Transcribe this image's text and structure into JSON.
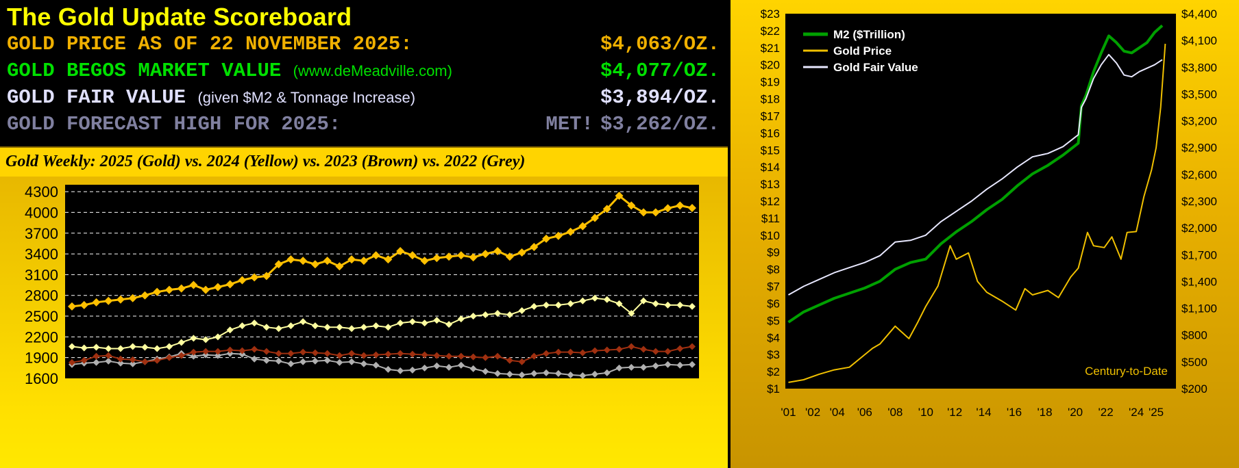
{
  "scoreboard": {
    "title": "The Gold Update Scoreboard",
    "rows": [
      {
        "label": "GOLD PRICE AS OF 22 NOVEMBER 2025:",
        "sublabel": "",
        "value": "$4,063/OZ.",
        "prefix": "",
        "color": "#F0B000"
      },
      {
        "label": "GOLD BEGOS MARKET VALUE",
        "sublabel": "(www.deMeadville.com)",
        "value": "$4,077/OZ.",
        "prefix": "",
        "color": "#00E000"
      },
      {
        "label": "GOLD FAIR VALUE",
        "sublabel": "(given $M2 & Tonnage Increase)",
        "value": "$3,894/OZ.",
        "prefix": "",
        "color": "#E0E0FF"
      },
      {
        "label": "GOLD FORECAST HIGH FOR 2025:",
        "sublabel": "",
        "value": "$3,262/OZ.",
        "prefix": "MET!",
        "color": "#8080A0"
      }
    ],
    "weekly_title": "Gold Weekly:  2025 (Gold) vs. 2024 (Yellow) vs. 2023 (Brown) vs. 2022 (Grey)"
  },
  "chart_data": [
    {
      "type": "line",
      "title": "",
      "xlabel": "",
      "ylabel": "",
      "y_ticks": [
        1600,
        1900,
        2200,
        2500,
        2800,
        3100,
        3400,
        3700,
        4000,
        4300
      ],
      "ylim": [
        1600,
        4400
      ],
      "grid": true,
      "x": "week of year (1-52)",
      "series": [
        {
          "key": "g2025",
          "color": "#FFC000",
          "width": 3,
          "values": [
            2640,
            2660,
            2700,
            2720,
            2740,
            2760,
            2800,
            2850,
            2880,
            2900,
            2950,
            2880,
            2920,
            2960,
            3020,
            3060,
            3080,
            3250,
            3320,
            3300,
            3250,
            3300,
            3220,
            3320,
            3300,
            3380,
            3320,
            3440,
            3380,
            3300,
            3340,
            3360,
            3380,
            3350,
            3400,
            3440,
            3360,
            3420,
            3500,
            3620,
            3660,
            3720,
            3800,
            3920,
            4050,
            4240,
            4100,
            4000,
            4000,
            4060,
            4100,
            4063
          ]
        },
        {
          "key": "g2024",
          "color": "#FFFFA0",
          "width": 2,
          "values": [
            2060,
            2040,
            2050,
            2030,
            2030,
            2060,
            2050,
            2030,
            2060,
            2120,
            2180,
            2160,
            2200,
            2300,
            2360,
            2400,
            2340,
            2320,
            2360,
            2420,
            2360,
            2340,
            2340,
            2320,
            2340,
            2360,
            2340,
            2400,
            2420,
            2400,
            2440,
            2380,
            2460,
            2500,
            2520,
            2540,
            2520,
            2580,
            2640,
            2660,
            2660,
            2680,
            2720,
            2760,
            2740,
            2680,
            2540,
            2720,
            2680,
            2660,
            2660,
            2640
          ]
        },
        {
          "key": "g2023",
          "color": "#A03010",
          "width": 2,
          "values": [
            1830,
            1860,
            1920,
            1930,
            1880,
            1870,
            1840,
            1860,
            1900,
            1930,
            1980,
            1990,
            1990,
            2010,
            2000,
            2020,
            1990,
            1960,
            1960,
            1980,
            1970,
            1960,
            1930,
            1960,
            1930,
            1940,
            1950,
            1960,
            1950,
            1940,
            1930,
            1920,
            1920,
            1910,
            1900,
            1920,
            1860,
            1840,
            1920,
            1960,
            1980,
            1980,
            1970,
            2000,
            2010,
            2020,
            2060,
            2020,
            1990,
            1990,
            2030,
            2060
          ]
        },
        {
          "key": "g2022",
          "color": "#B0B0B0",
          "width": 2,
          "values": [
            1800,
            1820,
            1830,
            1850,
            1820,
            1810,
            1840,
            1880,
            1910,
            1960,
            1920,
            1940,
            1930,
            1960,
            1950,
            1880,
            1860,
            1850,
            1810,
            1840,
            1850,
            1860,
            1830,
            1840,
            1810,
            1790,
            1730,
            1710,
            1720,
            1750,
            1780,
            1760,
            1790,
            1740,
            1700,
            1670,
            1660,
            1650,
            1670,
            1680,
            1670,
            1650,
            1640,
            1660,
            1680,
            1750,
            1760,
            1760,
            1780,
            1800,
            1790,
            1800
          ]
        }
      ]
    },
    {
      "type": "line",
      "title": "",
      "annotation": "Century-to-Date",
      "x_ticks": [
        "'01",
        "'02",
        "'04",
        "'06",
        "'08",
        "'10",
        "'12",
        "'14",
        "'16",
        "'18",
        "'20",
        "'22",
        "'24",
        "'25"
      ],
      "x_tick_years": [
        2001,
        2002.6,
        2004.2,
        2006,
        2008,
        2010,
        2011.9,
        2013.8,
        2015.8,
        2017.8,
        2019.8,
        2021.8,
        2023.8,
        2025.1
      ],
      "xlim": [
        2000.8,
        2026.4
      ],
      "y_left_ticks": [
        "$1",
        "$2",
        "$3",
        "$4",
        "$5",
        "$6",
        "$7",
        "$8",
        "$9",
        "$10",
        "$11",
        "$12",
        "$13",
        "$14",
        "$15",
        "$16",
        "$17",
        "$18",
        "$19",
        "$20",
        "$21",
        "$22",
        "$23"
      ],
      "y_left_lim": [
        1,
        23
      ],
      "y_right_ticks": [
        "$200",
        "$500",
        "$800",
        "$1,100",
        "$1,400",
        "$1,700",
        "$2,000",
        "$2,300",
        "$2,600",
        "$2,900",
        "$3,200",
        "$3,500",
        "$3,800",
        "$4,100",
        "$4,400"
      ],
      "y_right_lim": [
        200,
        4400
      ],
      "legend_position": "top-left",
      "series": [
        {
          "name": "M2 ($Trillion)",
          "color": "#00A000",
          "axis": "left",
          "width": 4,
          "x": [
            2001,
            2002,
            2003,
            2004,
            2005,
            2006,
            2007,
            2008,
            2009,
            2010,
            2011,
            2012,
            2013,
            2014,
            2015,
            2016,
            2017,
            2018,
            2019,
            2020,
            2020.2,
            2020.5,
            2021,
            2021.5,
            2022,
            2022.5,
            2023,
            2023.5,
            2024,
            2024.5,
            2025,
            2025.5
          ],
          "values": [
            4.9,
            5.5,
            5.9,
            6.3,
            6.6,
            6.9,
            7.3,
            8.0,
            8.4,
            8.6,
            9.5,
            10.2,
            10.8,
            11.5,
            12.1,
            12.9,
            13.6,
            14.1,
            14.7,
            15.4,
            17.6,
            18.2,
            19.6,
            20.7,
            21.7,
            21.3,
            20.8,
            20.7,
            21.0,
            21.3,
            21.9,
            22.3
          ]
        },
        {
          "name": "Gold Fair Value",
          "color": "#E8E8FF",
          "axis": "left",
          "width": 2,
          "x": [
            2001,
            2002,
            2003,
            2004,
            2005,
            2006,
            2007,
            2008,
            2009,
            2010,
            2011,
            2012,
            2013,
            2014,
            2015,
            2016,
            2017,
            2018,
            2019,
            2020,
            2020.2,
            2020.5,
            2021,
            2021.5,
            2022,
            2022.5,
            2023,
            2023.5,
            2024,
            2024.5,
            2025,
            2025.5
          ],
          "values": [
            6.5,
            7.0,
            7.4,
            7.8,
            8.1,
            8.4,
            8.8,
            9.6,
            9.7,
            10.0,
            10.8,
            11.4,
            12.0,
            12.7,
            13.3,
            14.0,
            14.6,
            14.8,
            15.2,
            15.9,
            17.5,
            18.0,
            19.2,
            20.0,
            20.6,
            20.1,
            19.4,
            19.3,
            19.6,
            19.8,
            20.0,
            20.3
          ]
        },
        {
          "name": "Gold Price",
          "color": "#F0C000",
          "axis": "right",
          "width": 2,
          "x": [
            2001,
            2002,
            2003,
            2004,
            2005,
            2006,
            2006.5,
            2007,
            2008,
            2008.9,
            2009.5,
            2010,
            2010.8,
            2011.6,
            2012,
            2012.8,
            2013.4,
            2014,
            2015,
            2015.9,
            2016.5,
            2017,
            2018,
            2018.7,
            2019.5,
            2020,
            2020.6,
            2021,
            2021.7,
            2022.2,
            2022.8,
            2023.2,
            2023.8,
            2024.3,
            2024.8,
            2025.1,
            2025.4,
            2025.7
          ],
          "values": [
            270,
            300,
            360,
            410,
            440,
            580,
            650,
            700,
            900,
            760,
            950,
            1120,
            1350,
            1800,
            1650,
            1720,
            1400,
            1280,
            1180,
            1080,
            1320,
            1250,
            1300,
            1220,
            1450,
            1550,
            1950,
            1800,
            1780,
            1900,
            1650,
            1950,
            1960,
            2350,
            2650,
            2900,
            3350,
            4063
          ]
        }
      ]
    }
  ]
}
